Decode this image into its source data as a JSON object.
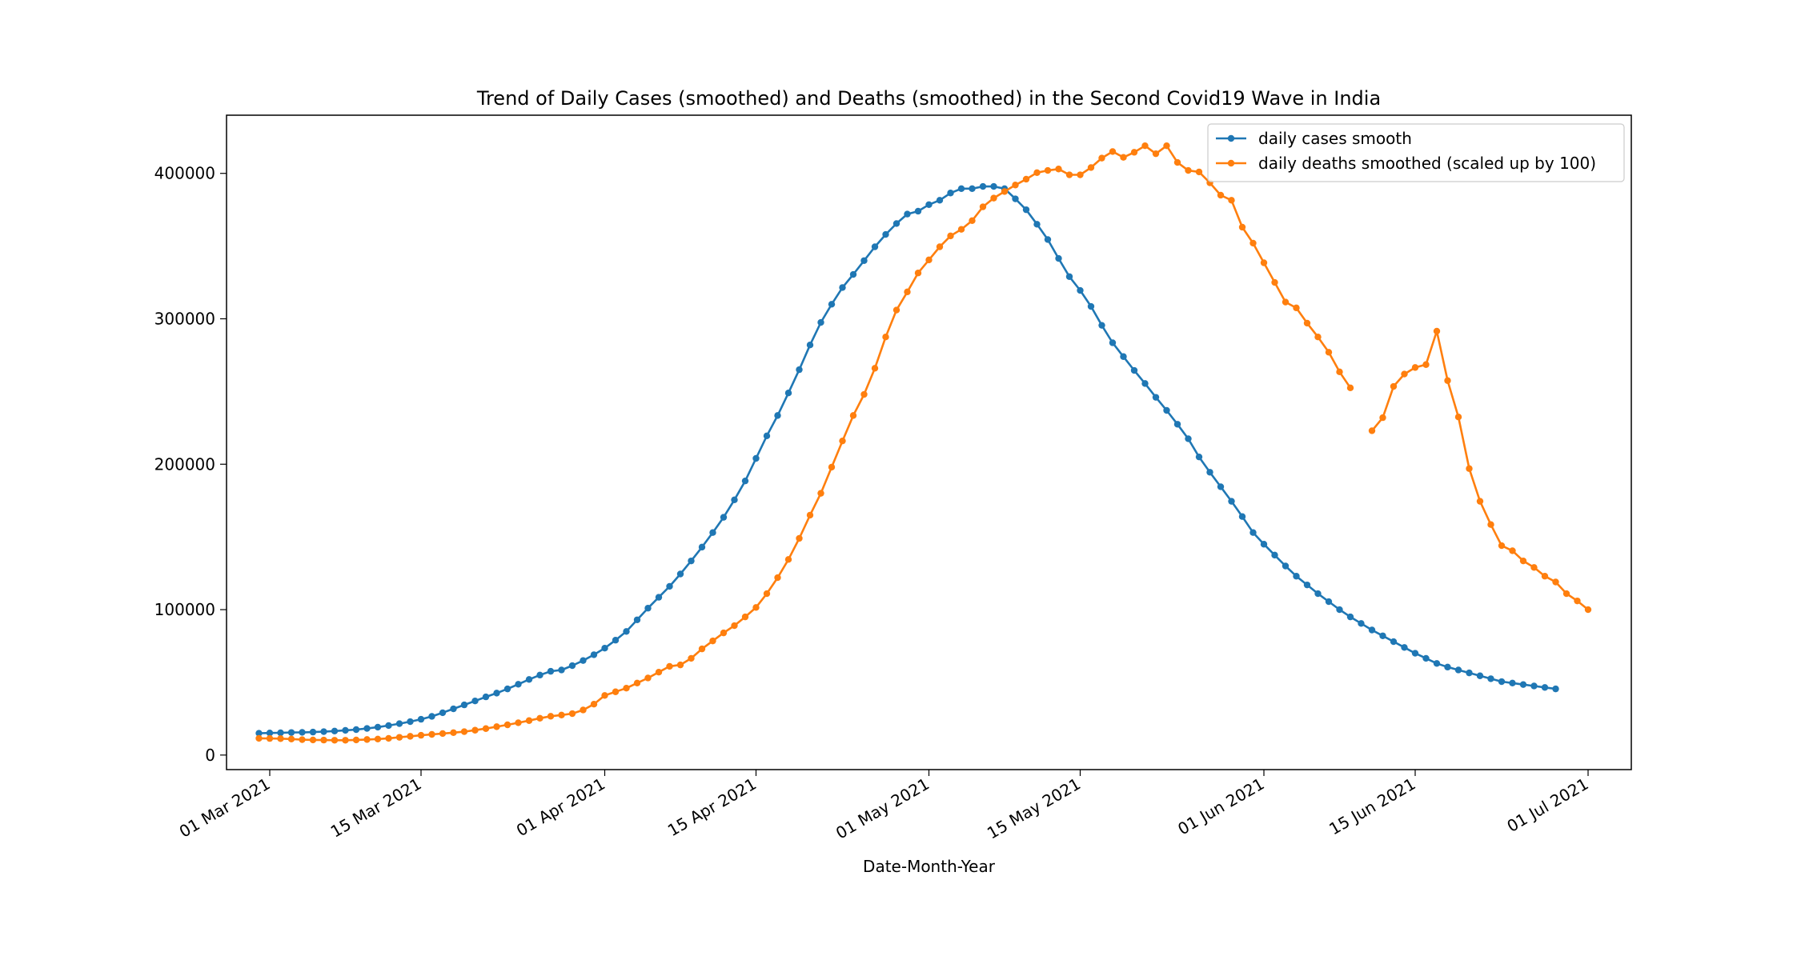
{
  "chart_data": {
    "type": "line",
    "title": "Trend of Daily Cases (smoothed) and Deaths (smoothed) in the Second Covid19 Wave in India",
    "xlabel": "Date-Month-Year",
    "ylabel": "",
    "x_start": "2021-02-28",
    "x_step_days": 1,
    "xlim": [
      "2021-02-25",
      "2021-07-05"
    ],
    "ylim": [
      -10000,
      440000
    ],
    "x_ticks": [
      {
        "date": "2021-03-01",
        "label": "01 Mar 2021"
      },
      {
        "date": "2021-03-15",
        "label": "15 Mar 2021"
      },
      {
        "date": "2021-04-01",
        "label": "01 Apr 2021"
      },
      {
        "date": "2021-04-15",
        "label": "15 Apr 2021"
      },
      {
        "date": "2021-05-01",
        "label": "01 May 2021"
      },
      {
        "date": "2021-05-15",
        "label": "15 May 2021"
      },
      {
        "date": "2021-06-01",
        "label": "01 Jun 2021"
      },
      {
        "date": "2021-06-15",
        "label": "15 Jun 2021"
      },
      {
        "date": "2021-07-01",
        "label": "01 Jul 2021"
      }
    ],
    "y_ticks": [
      0,
      100000,
      200000,
      300000,
      400000
    ],
    "y_tick_labels": [
      "0",
      "100000",
      "200000",
      "300000",
      "400000"
    ],
    "grid": false,
    "legend_position": "top-right",
    "series": [
      {
        "name": "daily cases smooth",
        "color": "#1f77b4",
        "marker": "circle",
        "values": [
          15000,
          15200,
          15300,
          15500,
          15600,
          15800,
          16100,
          16500,
          17000,
          17500,
          18300,
          19200,
          20300,
          21600,
          23000,
          24600,
          26600,
          29100,
          31800,
          34500,
          37200,
          40000,
          42600,
          45500,
          48700,
          52000,
          55000,
          57600,
          58500,
          61500,
          65000,
          69000,
          73500,
          79000,
          85000,
          93000,
          101000,
          108500,
          116000,
          124500,
          133500,
          143000,
          153000,
          163500,
          175500,
          188500,
          204000,
          219500,
          233500,
          249000,
          265000,
          282000,
          297500,
          310000,
          321500,
          330500,
          340000,
          349500,
          358000,
          365500,
          372000,
          374000,
          378500,
          381500,
          386500,
          389500,
          389500,
          391000,
          391000,
          389500,
          382500,
          375000,
          365000,
          354500,
          341500,
          329000,
          319500,
          308500,
          295500,
          283500,
          274000,
          264500,
          255500,
          246000,
          237000,
          227500,
          217500,
          205000,
          194500,
          184500,
          174500,
          164000,
          153000,
          145000,
          137500,
          130000,
          123000,
          117000,
          111000,
          105500,
          100000,
          95000,
          90500,
          86000,
          82000,
          78000,
          74000,
          70000,
          66500,
          63000,
          60500,
          58500,
          56500,
          54500,
          52500,
          50500,
          49500,
          48500,
          47500,
          46500,
          45500
        ]
      },
      {
        "name": "daily deaths smoothed (scaled up by 100)",
        "color": "#ff7f0e",
        "marker": "circle",
        "values": [
          11500,
          11400,
          11300,
          11000,
          10600,
          10400,
          10300,
          10200,
          10200,
          10400,
          10700,
          11000,
          11500,
          12200,
          12900,
          13600,
          14200,
          14800,
          15400,
          16100,
          17100,
          18200,
          19500,
          20800,
          22200,
          23700,
          25300,
          26700,
          27500,
          28500,
          31000,
          35000,
          41000,
          43500,
          46000,
          49500,
          53000,
          57000,
          61000,
          62000,
          66500,
          73000,
          78500,
          84000,
          89000,
          95000,
          101500,
          111000,
          122000,
          134500,
          149000,
          165000,
          180000,
          198000,
          216000,
          233500,
          248000,
          266000,
          287500,
          306000,
          318500,
          331500,
          340500,
          349500,
          357000,
          361500,
          367500,
          377000,
          383000,
          387500,
          392000,
          396000,
          400500,
          402000,
          403000,
          399000,
          399000,
          404000,
          410500,
          415000,
          411000,
          414500,
          419000,
          413500,
          419000,
          407500,
          402000,
          401000,
          393500,
          385000,
          381500,
          363000,
          352000,
          338500,
          325000,
          311500,
          307500,
          297000,
          287500,
          277000,
          263500,
          252500,
          null,
          223000,
          232000,
          253500,
          262000,
          266500,
          268500,
          291500,
          257500,
          232500,
          197000,
          174500,
          158500,
          144000,
          140500,
          133500,
          129000,
          123000,
          119000,
          111000,
          106000,
          100000
        ]
      }
    ]
  }
}
